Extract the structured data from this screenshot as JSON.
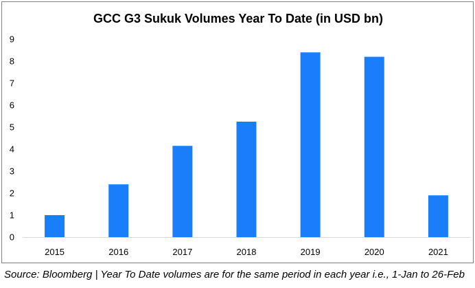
{
  "chart_data": {
    "type": "bar",
    "title": "GCC G3 Sukuk Volumes Year To Date (in USD bn)",
    "categories": [
      "2015",
      "2016",
      "2017",
      "2018",
      "2019",
      "2020",
      "2021"
    ],
    "values": [
      1.0,
      2.4,
      4.15,
      5.25,
      8.4,
      8.2,
      1.9
    ],
    "ylim": [
      0,
      9
    ],
    "yticks": [
      "0",
      "1",
      "2",
      "3",
      "4",
      "5",
      "6",
      "7",
      "8",
      "9"
    ],
    "grid": false,
    "legend": "none",
    "bar_color": "#1a7efb",
    "axis_color": "#d9d9d9"
  },
  "source_note": "Source: Bloomberg | Year To Date volumes are for the same period in each year i.e., 1-Jan to 26-Feb"
}
